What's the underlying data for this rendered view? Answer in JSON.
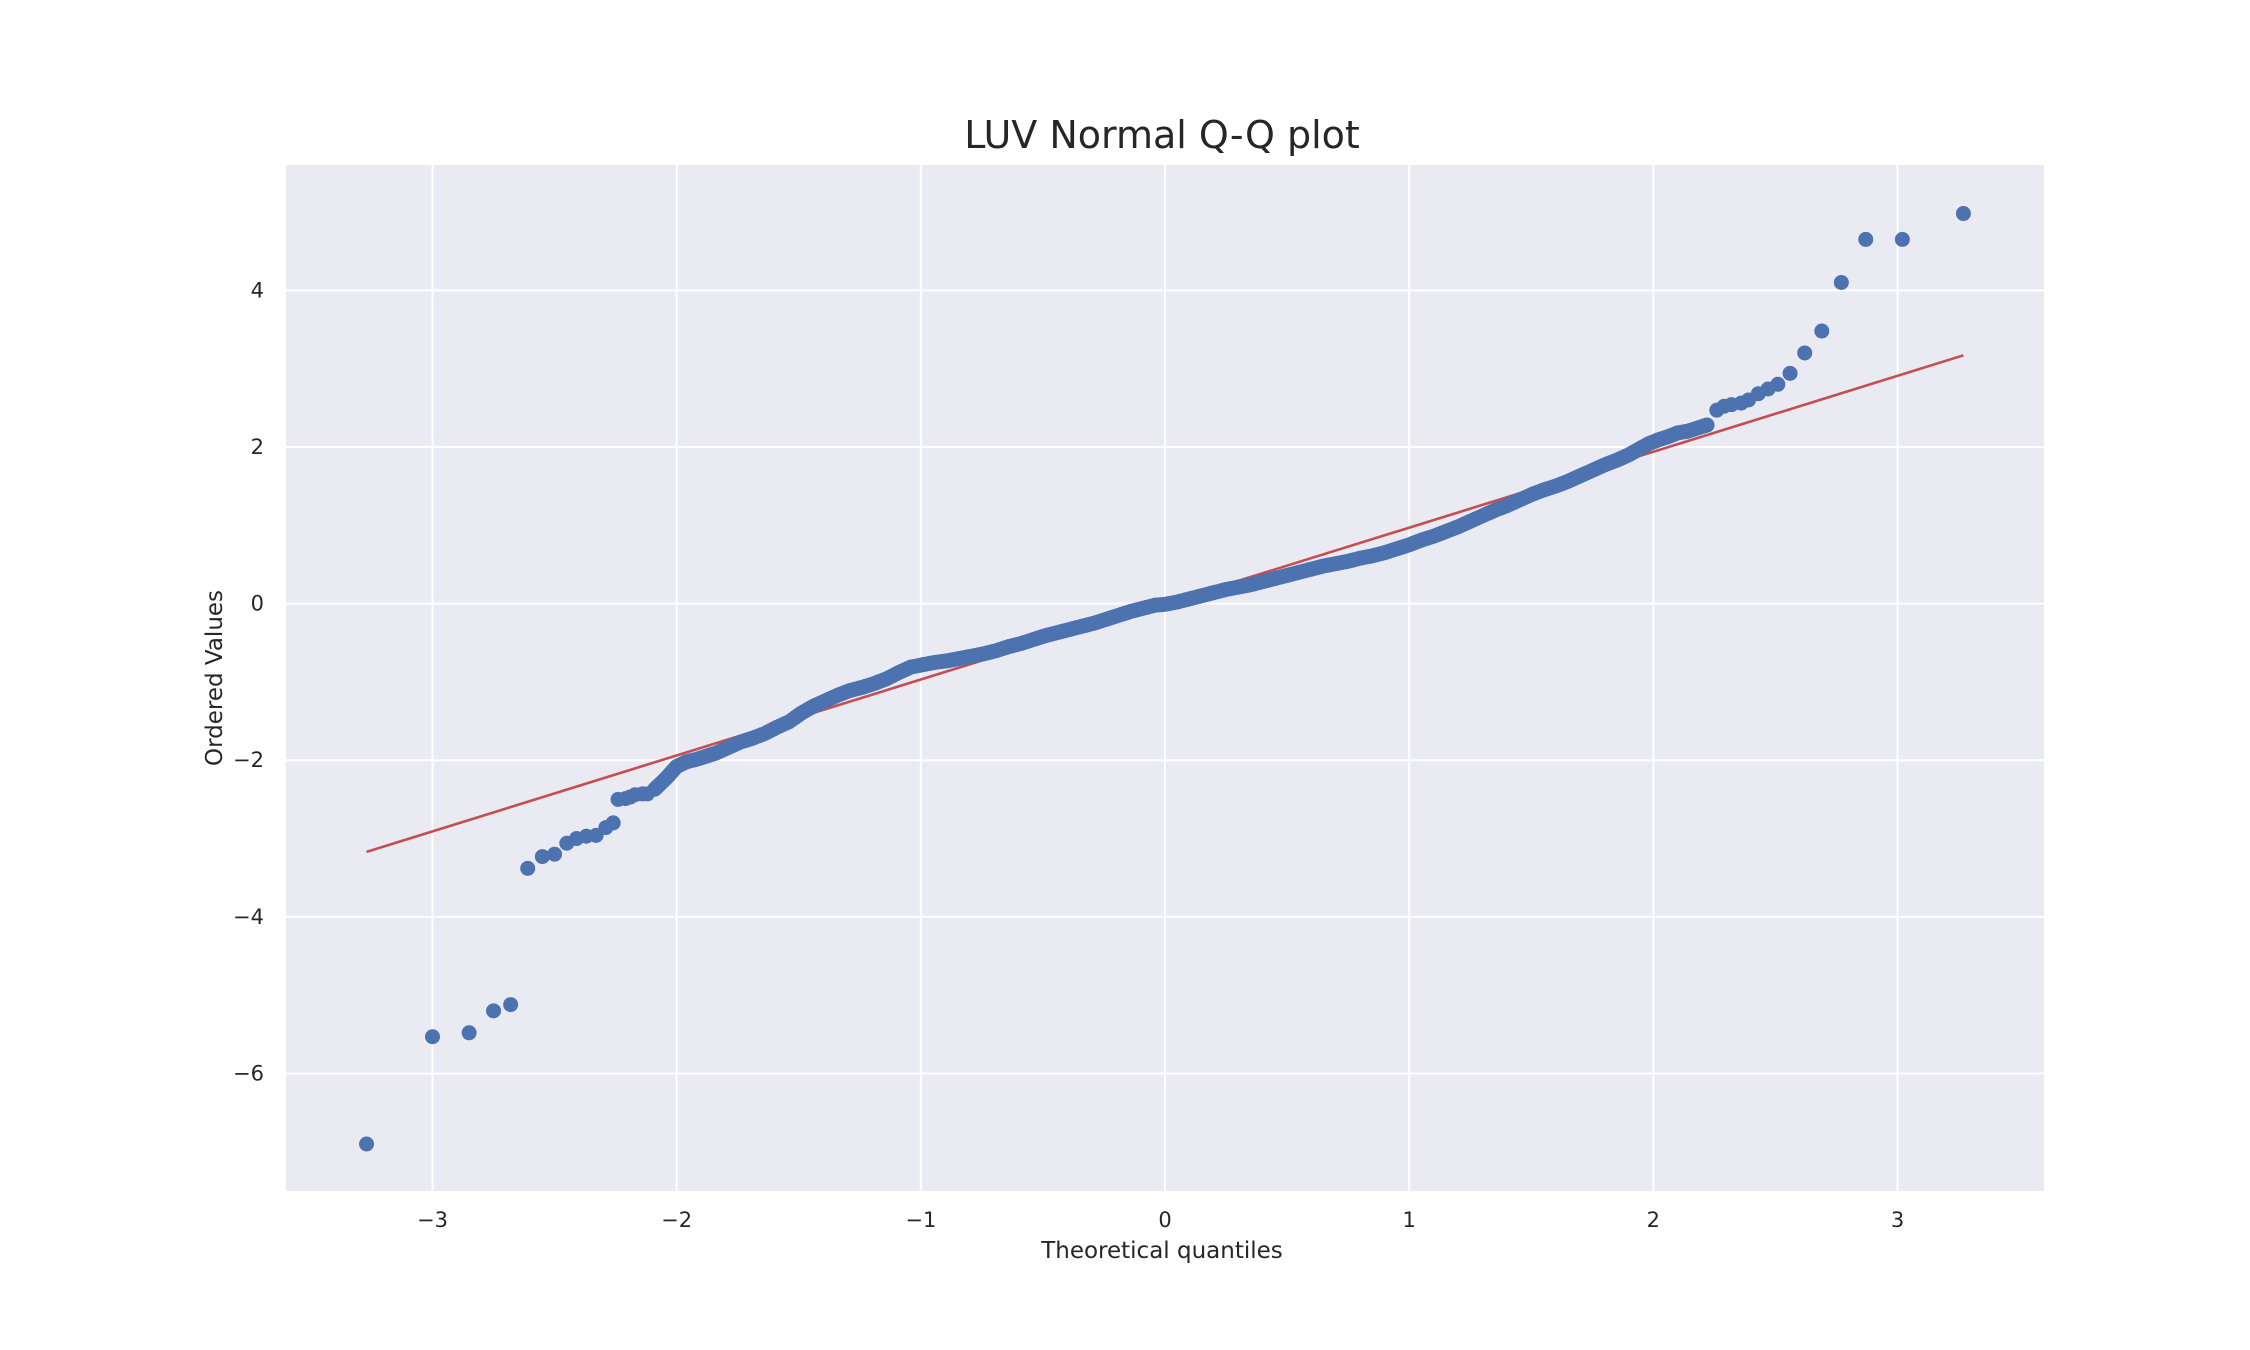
{
  "chart_data": {
    "type": "scatter",
    "title": "LUV Normal Q-Q plot",
    "xlabel": "Theoretical quantiles",
    "ylabel": "Ordered Values",
    "xlim": [
      -3.6,
      3.6
    ],
    "ylim": [
      -7.5,
      5.6
    ],
    "xticks": [
      -3,
      -2,
      -1,
      0,
      1,
      2,
      3
    ],
    "xtick_labels": [
      "−3",
      "−2",
      "−1",
      "0",
      "1",
      "2",
      "3"
    ],
    "yticks": [
      -6,
      -4,
      -2,
      0,
      2,
      4
    ],
    "ytick_labels": [
      "−6",
      "−4",
      "−2",
      "0",
      "2",
      "4"
    ],
    "grid": true,
    "legend": "none",
    "colors": {
      "background": "#eaeaf2",
      "grid": "#ffffff",
      "points": "#4c72b0",
      "fit_line": "#c44e52"
    },
    "fit_line": {
      "x": [
        -3.27,
        3.27
      ],
      "y": [
        -3.17,
        3.17
      ]
    },
    "points": [
      [
        -3.27,
        -6.9
      ],
      [
        -3.0,
        -5.53
      ],
      [
        -2.85,
        -5.48
      ],
      [
        -2.75,
        -5.2
      ],
      [
        -2.68,
        -5.12
      ],
      [
        -2.61,
        -3.38
      ],
      [
        -2.55,
        -3.23
      ],
      [
        -2.5,
        -3.2
      ],
      [
        -2.45,
        -3.06
      ],
      [
        -2.41,
        -3.0
      ],
      [
        -2.37,
        -2.97
      ],
      [
        -2.33,
        -2.96
      ],
      [
        -2.29,
        -2.86
      ],
      [
        -2.26,
        -2.8
      ],
      [
        -2.24,
        -2.5
      ],
      [
        -2.21,
        -2.49
      ],
      [
        -2.19,
        -2.47
      ],
      [
        -2.17,
        -2.44
      ],
      [
        -2.14,
        -2.43
      ],
      [
        -2.12,
        -2.43
      ],
      [
        -2.09,
        -2.37
      ],
      [
        -2.07,
        -2.31
      ],
      [
        -2.04,
        -2.22
      ],
      [
        -2.02,
        -2.15
      ],
      [
        -2.0,
        -2.08
      ],
      [
        -1.96,
        -2.02
      ],
      [
        -1.92,
        -1.99
      ],
      [
        -1.88,
        -1.95
      ],
      [
        -1.84,
        -1.91
      ],
      [
        -1.79,
        -1.84
      ],
      [
        -1.74,
        -1.77
      ],
      [
        -1.69,
        -1.72
      ],
      [
        -1.64,
        -1.66
      ],
      [
        -1.59,
        -1.58
      ],
      [
        -1.54,
        -1.51
      ],
      [
        -1.49,
        -1.4
      ],
      [
        -1.44,
        -1.31
      ],
      [
        -1.39,
        -1.24
      ],
      [
        -1.34,
        -1.17
      ],
      [
        -1.29,
        -1.11
      ],
      [
        -1.24,
        -1.07
      ],
      [
        -1.19,
        -1.02
      ],
      [
        -1.14,
        -0.96
      ],
      [
        -1.09,
        -0.88
      ],
      [
        -1.04,
        -0.81
      ],
      [
        -0.99,
        -0.78
      ],
      [
        -0.94,
        -0.75
      ],
      [
        -0.89,
        -0.73
      ],
      [
        -0.84,
        -0.7
      ],
      [
        -0.79,
        -0.67
      ],
      [
        -0.74,
        -0.64
      ],
      [
        -0.69,
        -0.6
      ],
      [
        -0.64,
        -0.55
      ],
      [
        -0.59,
        -0.51
      ],
      [
        -0.54,
        -0.46
      ],
      [
        -0.49,
        -0.41
      ],
      [
        -0.44,
        -0.37
      ],
      [
        -0.39,
        -0.33
      ],
      [
        -0.34,
        -0.29
      ],
      [
        -0.29,
        -0.25
      ],
      [
        -0.24,
        -0.2
      ],
      [
        -0.19,
        -0.15
      ],
      [
        -0.14,
        -0.1
      ],
      [
        -0.09,
        -0.06
      ],
      [
        -0.04,
        -0.02
      ],
      [
        0.0,
        -0.01
      ],
      [
        0.05,
        0.02
      ],
      [
        0.1,
        0.06
      ],
      [
        0.15,
        0.1
      ],
      [
        0.2,
        0.14
      ],
      [
        0.25,
        0.18
      ],
      [
        0.3,
        0.21
      ],
      [
        0.35,
        0.24
      ],
      [
        0.4,
        0.28
      ],
      [
        0.45,
        0.32
      ],
      [
        0.5,
        0.36
      ],
      [
        0.55,
        0.4
      ],
      [
        0.6,
        0.44
      ],
      [
        0.65,
        0.48
      ],
      [
        0.7,
        0.51
      ],
      [
        0.75,
        0.54
      ],
      [
        0.8,
        0.58
      ],
      [
        0.85,
        0.61
      ],
      [
        0.9,
        0.65
      ],
      [
        0.95,
        0.7
      ],
      [
        1.0,
        0.75
      ],
      [
        1.05,
        0.81
      ],
      [
        1.1,
        0.86
      ],
      [
        1.15,
        0.92
      ],
      [
        1.2,
        0.98
      ],
      [
        1.25,
        1.05
      ],
      [
        1.3,
        1.12
      ],
      [
        1.35,
        1.19
      ],
      [
        1.4,
        1.25
      ],
      [
        1.45,
        1.32
      ],
      [
        1.5,
        1.39
      ],
      [
        1.55,
        1.45
      ],
      [
        1.6,
        1.5
      ],
      [
        1.65,
        1.56
      ],
      [
        1.7,
        1.63
      ],
      [
        1.75,
        1.7
      ],
      [
        1.8,
        1.77
      ],
      [
        1.85,
        1.83
      ],
      [
        1.9,
        1.9
      ],
      [
        1.94,
        1.97
      ],
      [
        1.98,
        2.04
      ],
      [
        2.02,
        2.09
      ],
      [
        2.06,
        2.13
      ],
      [
        2.1,
        2.18
      ],
      [
        2.14,
        2.2
      ],
      [
        2.18,
        2.24
      ],
      [
        2.22,
        2.28
      ],
      [
        2.26,
        2.47
      ],
      [
        2.29,
        2.52
      ],
      [
        2.32,
        2.54
      ],
      [
        2.36,
        2.56
      ],
      [
        2.39,
        2.6
      ],
      [
        2.43,
        2.68
      ],
      [
        2.47,
        2.74
      ],
      [
        2.51,
        2.8
      ],
      [
        2.56,
        2.94
      ],
      [
        2.62,
        3.2
      ],
      [
        2.69,
        3.48
      ],
      [
        2.77,
        4.1
      ],
      [
        2.87,
        4.65
      ],
      [
        3.02,
        4.65
      ],
      [
        3.27,
        4.98
      ]
    ]
  }
}
